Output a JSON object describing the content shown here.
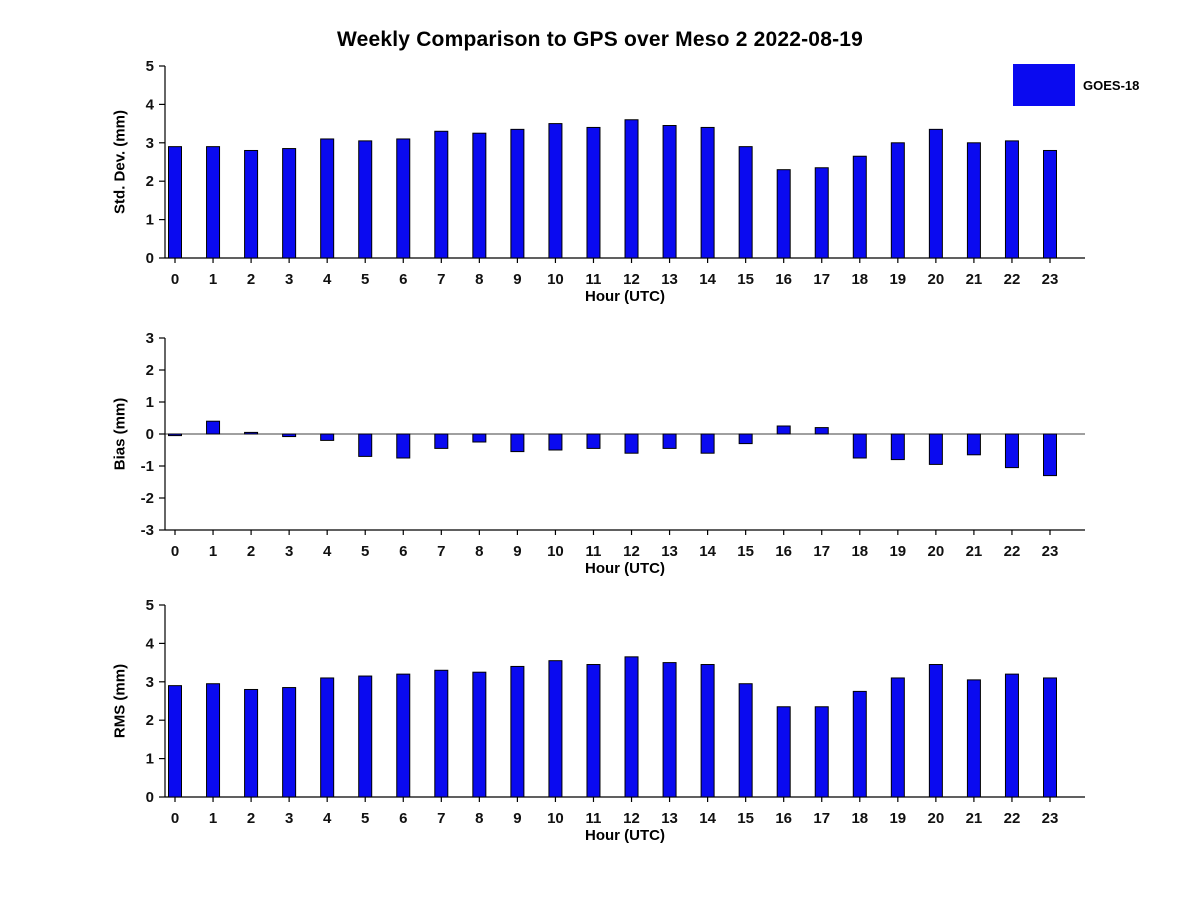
{
  "title": "Weekly Comparison to GPS over Meso 2 2022-08-19",
  "legend": {
    "label": "GOES-18",
    "color": "#0a0af0"
  },
  "chart_data": [
    {
      "type": "bar",
      "name": "std-dev",
      "ylabel": "Std. Dev. (mm)",
      "xlabel": "Hour (UTC)",
      "categories": [
        "0",
        "1",
        "2",
        "3",
        "4",
        "5",
        "6",
        "7",
        "8",
        "9",
        "10",
        "11",
        "12",
        "13",
        "14",
        "15",
        "16",
        "17",
        "18",
        "19",
        "20",
        "21",
        "22",
        "23"
      ],
      "values": [
        2.9,
        2.9,
        2.8,
        2.85,
        3.1,
        3.05,
        3.1,
        3.3,
        3.25,
        3.35,
        3.5,
        3.4,
        3.6,
        3.45,
        3.4,
        2.9,
        2.3,
        2.35,
        2.65,
        3.0,
        3.35,
        3.0,
        3.05,
        2.8
      ],
      "ylim": [
        0,
        5
      ],
      "yticks": [
        0,
        1,
        2,
        3,
        4,
        5
      ]
    },
    {
      "type": "bar",
      "name": "bias",
      "ylabel": "Bias (mm)",
      "xlabel": "Hour (UTC)",
      "categories": [
        "0",
        "1",
        "2",
        "3",
        "4",
        "5",
        "6",
        "7",
        "8",
        "9",
        "10",
        "11",
        "12",
        "13",
        "14",
        "15",
        "16",
        "17",
        "18",
        "19",
        "20",
        "21",
        "22",
        "23"
      ],
      "values": [
        -0.05,
        0.4,
        0.05,
        -0.08,
        -0.2,
        -0.7,
        -0.75,
        -0.45,
        -0.25,
        -0.55,
        -0.5,
        -0.45,
        -0.6,
        -0.45,
        -0.6,
        -0.3,
        0.25,
        0.2,
        -0.75,
        -0.8,
        -0.95,
        -0.65,
        -1.05,
        -1.3
      ],
      "ylim": [
        -3,
        3
      ],
      "yticks": [
        -3,
        -2,
        -1,
        0,
        1,
        2,
        3
      ]
    },
    {
      "type": "bar",
      "name": "rms",
      "ylabel": "RMS (mm)",
      "xlabel": "Hour (UTC)",
      "categories": [
        "0",
        "1",
        "2",
        "3",
        "4",
        "5",
        "6",
        "7",
        "8",
        "9",
        "10",
        "11",
        "12",
        "13",
        "14",
        "15",
        "16",
        "17",
        "18",
        "19",
        "20",
        "21",
        "22",
        "23"
      ],
      "values": [
        2.9,
        2.95,
        2.8,
        2.85,
        3.1,
        3.15,
        3.2,
        3.3,
        3.25,
        3.4,
        3.55,
        3.45,
        3.65,
        3.5,
        3.45,
        2.95,
        2.35,
        2.35,
        2.75,
        3.1,
        3.45,
        3.05,
        3.2,
        3.1
      ],
      "ylim": [
        0,
        5
      ],
      "yticks": [
        0,
        1,
        2,
        3,
        4,
        5
      ]
    }
  ]
}
